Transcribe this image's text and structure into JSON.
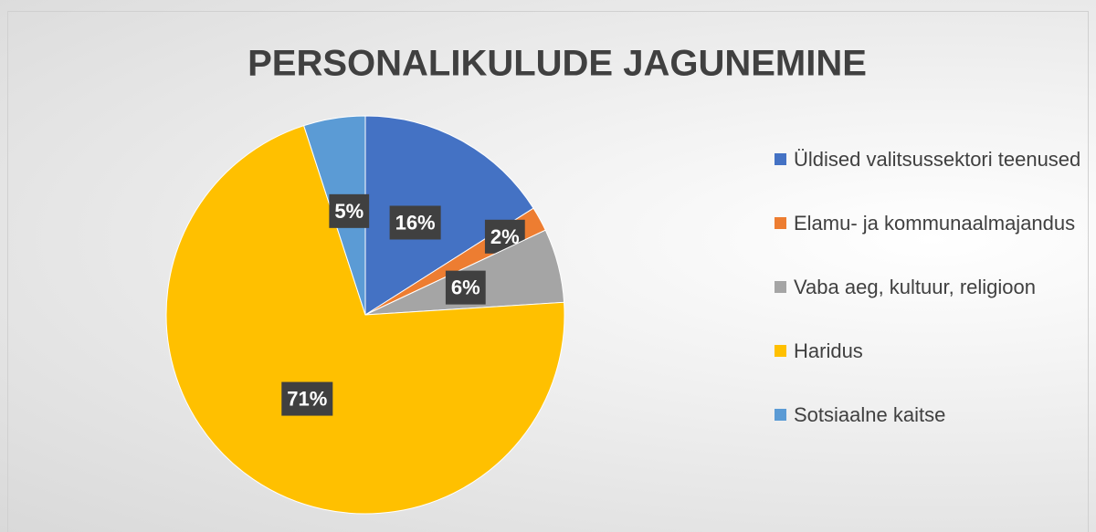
{
  "chart_data": {
    "type": "pie",
    "title": "PERSONALIKULUDE JAGUNEMINE",
    "categories": [
      "Üldised valitsussektori teenused",
      "Elamu- ja kommunaalmajandus",
      "Vaba aeg, kultuur, religioon",
      "Haridus",
      "Sotsiaalne kaitse"
    ],
    "values": [
      16,
      2,
      6,
      71,
      5
    ],
    "value_labels": [
      "16%",
      "2%",
      "6%",
      "71%",
      "5%"
    ],
    "colors": [
      "#4472c4",
      "#ed7d31",
      "#a5a5a5",
      "#ffc000",
      "#5b9bd5"
    ],
    "legend": "right"
  }
}
